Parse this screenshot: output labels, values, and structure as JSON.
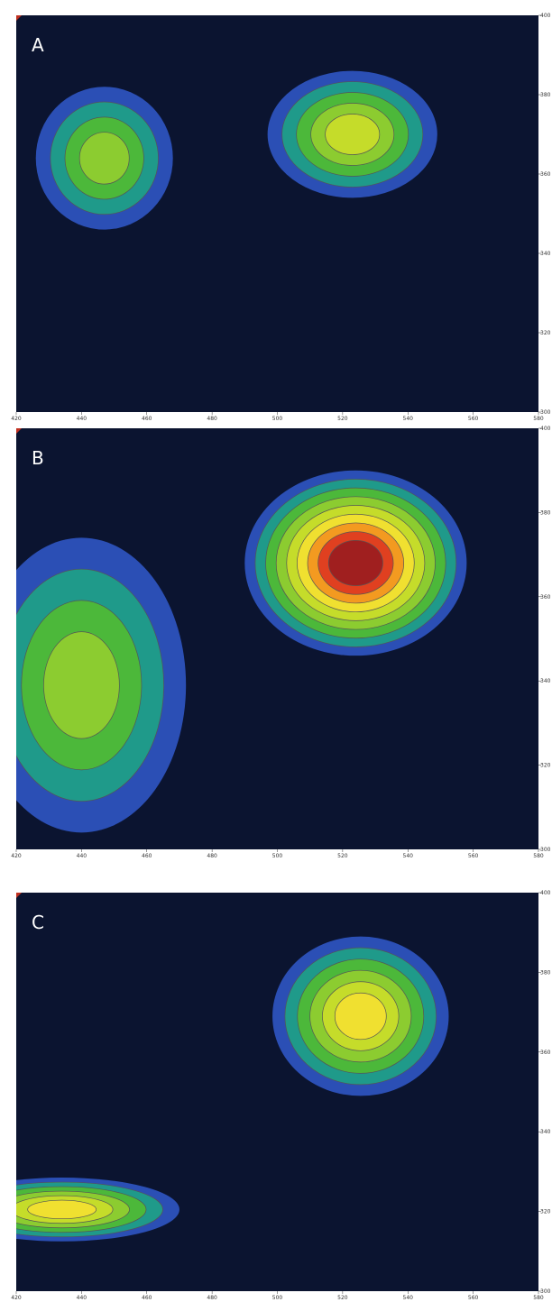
{
  "chart_data": [
    {
      "type": "contour",
      "label": "A",
      "xlim": [
        420,
        580
      ],
      "ylim": [
        300,
        400
      ],
      "xticks": [
        420,
        440,
        460,
        480,
        500,
        520,
        540,
        560,
        580
      ],
      "yticks": [
        300,
        320,
        340,
        360,
        380,
        400
      ],
      "colors": [
        "#2b4fb5",
        "#1f9a8a",
        "#4cb83a",
        "#8ccc30",
        "#c5dc2a",
        "#f0e030",
        "#f39a20",
        "#e04020",
        "#a01f1f"
      ],
      "peaks": [
        {
          "x": 447,
          "y": 364,
          "rx": 21,
          "ry": 18,
          "levels": 4
        },
        {
          "x": 523,
          "y": 370,
          "rx": 26,
          "ry": 16,
          "levels": 5
        }
      ]
    },
    {
      "type": "contour",
      "label": "B",
      "xlim": [
        420,
        580
      ],
      "ylim": [
        300,
        400
      ],
      "xticks": [
        420,
        440,
        460,
        480,
        500,
        520,
        540,
        560,
        580
      ],
      "yticks": [
        300,
        320,
        340,
        360,
        380,
        400
      ],
      "colors": [
        "#2b4fb5",
        "#1f9a8a",
        "#4cb83a",
        "#8ccc30",
        "#c5dc2a",
        "#f0e030",
        "#f39a20",
        "#e04020",
        "#a01f1f"
      ],
      "peaks": [
        {
          "x": 440,
          "y": 339,
          "rx": 32,
          "ry": 35,
          "levels": 4
        },
        {
          "x": 524,
          "y": 368,
          "rx": 34,
          "ry": 22,
          "levels": 9
        }
      ]
    },
    {
      "type": "contour",
      "label": "C",
      "xlim": [
        420,
        580
      ],
      "ylim": [
        300,
        400
      ],
      "xticks": [
        420,
        440,
        460,
        480,
        500,
        520,
        540,
        560,
        580
      ],
      "yticks": [
        300,
        320,
        340,
        360,
        380,
        400
      ],
      "colors": [
        "#2b4fb5",
        "#1f9a8a",
        "#4cb83a",
        "#8ccc30",
        "#c5dc2a",
        "#f0e030",
        "#f39a20",
        "#e04020",
        "#a01f1f"
      ],
      "peaks": [
        {
          "x": 434,
          "y": 320.5,
          "rx": 36,
          "ry": 8,
          "levels": 6
        },
        {
          "x": 525.5,
          "y": 369,
          "rx": 27,
          "ry": 20,
          "levels": 6
        }
      ]
    }
  ]
}
